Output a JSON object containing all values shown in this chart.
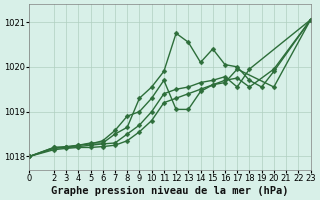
{
  "background_color": "#d8f0e8",
  "grid_color": "#b0cfc0",
  "line_color": "#2d6e3a",
  "xlabel": "Graphe pression niveau de la mer (hPa)",
  "ylim": [
    1017.7,
    1021.4
  ],
  "xlim": [
    0,
    23
  ],
  "yticks": [
    1018,
    1019,
    1020,
    1021
  ],
  "xticks": [
    0,
    2,
    3,
    4,
    5,
    6,
    7,
    8,
    9,
    10,
    11,
    12,
    13,
    14,
    15,
    16,
    17,
    18,
    19,
    20,
    21,
    22,
    23
  ],
  "series": [
    {
      "x": [
        0,
        2,
        3,
        4,
        5,
        6,
        7,
        8,
        9,
        10,
        11,
        12,
        13,
        14,
        15,
        16,
        17,
        18,
        19,
        20,
        23
      ],
      "y": [
        1018.0,
        1018.2,
        1018.2,
        1018.25,
        1018.3,
        1018.3,
        1018.5,
        1018.65,
        1019.3,
        1019.55,
        1019.9,
        1020.75,
        1020.55,
        1020.1,
        1020.4,
        1020.05,
        1020.0,
        1019.7,
        1019.55,
        1019.9,
        1021.05
      ]
    },
    {
      "x": [
        0,
        2,
        3,
        4,
        5,
        6,
        7,
        8,
        9,
        10,
        11,
        12,
        13,
        14,
        15,
        16,
        17,
        18,
        20,
        23
      ],
      "y": [
        1018.0,
        1018.2,
        1018.22,
        1018.25,
        1018.28,
        1018.35,
        1018.58,
        1018.9,
        1019.0,
        1019.3,
        1019.7,
        1019.05,
        1019.05,
        1019.45,
        1019.6,
        1019.7,
        1019.75,
        1019.55,
        1019.95,
        1021.05
      ]
    },
    {
      "x": [
        0,
        2,
        3,
        4,
        5,
        6,
        7,
        8,
        9,
        10,
        11,
        12,
        13,
        14,
        15,
        16,
        17,
        18,
        23
      ],
      "y": [
        1018.0,
        1018.18,
        1018.2,
        1018.22,
        1018.25,
        1018.28,
        1018.3,
        1018.5,
        1018.7,
        1019.0,
        1019.4,
        1019.5,
        1019.55,
        1019.65,
        1019.7,
        1019.78,
        1019.55,
        1019.95,
        1021.05
      ]
    },
    {
      "x": [
        0,
        2,
        3,
        4,
        5,
        6,
        7,
        8,
        9,
        10,
        11,
        12,
        13,
        14,
        15,
        16,
        17,
        20,
        23
      ],
      "y": [
        1018.0,
        1018.15,
        1018.18,
        1018.2,
        1018.2,
        1018.22,
        1018.25,
        1018.35,
        1018.55,
        1018.8,
        1019.2,
        1019.3,
        1019.4,
        1019.5,
        1019.6,
        1019.65,
        1019.95,
        1019.55,
        1021.05
      ]
    }
  ],
  "marker_size": 2.5,
  "line_width": 1.0,
  "title_fontsize": 7.5,
  "tick_fontsize": 6.0
}
